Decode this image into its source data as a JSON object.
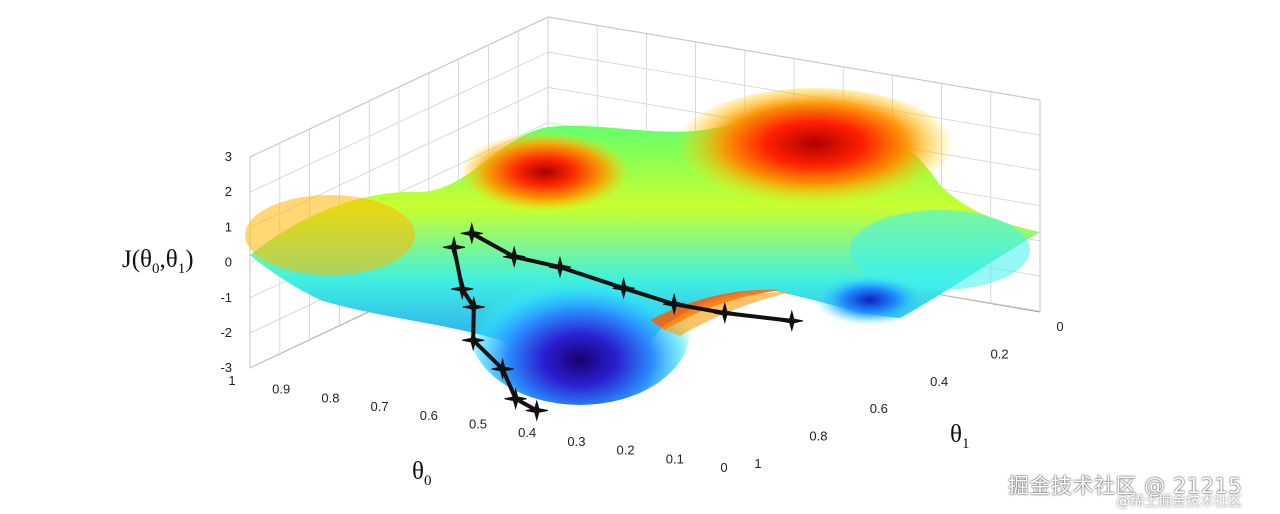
{
  "chart_data": {
    "type": "surface",
    "xlabel": "θ",
    "xlabel_sub": "0",
    "ylabel": "θ",
    "ylabel_sub": "1",
    "zlabel_parts": [
      "J(θ",
      "0",
      ",θ",
      "1",
      ")"
    ],
    "x_ticks": [
      "1",
      "0.9",
      "0.8",
      "0.7",
      "0.6",
      "0.5",
      "0.4",
      "0.3",
      "0.2",
      "0.1",
      "0"
    ],
    "y_ticks": [
      "0",
      "0.2",
      "0.4",
      "0.6",
      "0.8",
      "1"
    ],
    "z_ticks": [
      "3",
      "2",
      "1",
      "0",
      "-1",
      "-2",
      "-3"
    ],
    "xlim": [
      0,
      1
    ],
    "ylim": [
      0,
      1
    ],
    "zlim": [
      -3,
      3
    ],
    "grid": true,
    "colormap": "jet",
    "paths": [
      {
        "marker": "star",
        "color": "#111111",
        "points": [
          {
            "theta0": 0.4,
            "theta1": 0.0,
            "J": 2.0
          },
          {
            "theta0": 0.39,
            "theta1": 0.01,
            "J": 0.8
          },
          {
            "theta0": 0.37,
            "theta1": 0.02,
            "J": 0.3
          },
          {
            "theta0": 0.4,
            "theta1": 0.04,
            "J": -0.8
          },
          {
            "theta0": 0.37,
            "theta1": 0.08,
            "J": -1.7
          },
          {
            "theta0": 0.36,
            "theta1": 0.1,
            "J": -2.6
          },
          {
            "theta0": 0.34,
            "theta1": 0.13,
            "J": -3.0
          }
        ]
      },
      {
        "marker": "star",
        "color": "#111111",
        "points": [
          {
            "theta0": 0.39,
            "theta1": 0.03,
            "J": 2.3
          },
          {
            "theta0": 0.35,
            "theta1": 0.09,
            "J": 1.5
          },
          {
            "theta0": 0.3,
            "theta1": 0.15,
            "J": 1.1
          },
          {
            "theta0": 0.24,
            "theta1": 0.24,
            "J": 0.3
          },
          {
            "theta0": 0.19,
            "theta1": 0.31,
            "J": -0.3
          },
          {
            "theta0": 0.14,
            "theta1": 0.38,
            "J": -0.7
          },
          {
            "theta0": 0.07,
            "theta1": 0.47,
            "J": -1.1
          }
        ]
      }
    ]
  },
  "watermark": {
    "main": "掘金技术社区 @ 21215",
    "sub": "@稀土掘金技术社区"
  }
}
